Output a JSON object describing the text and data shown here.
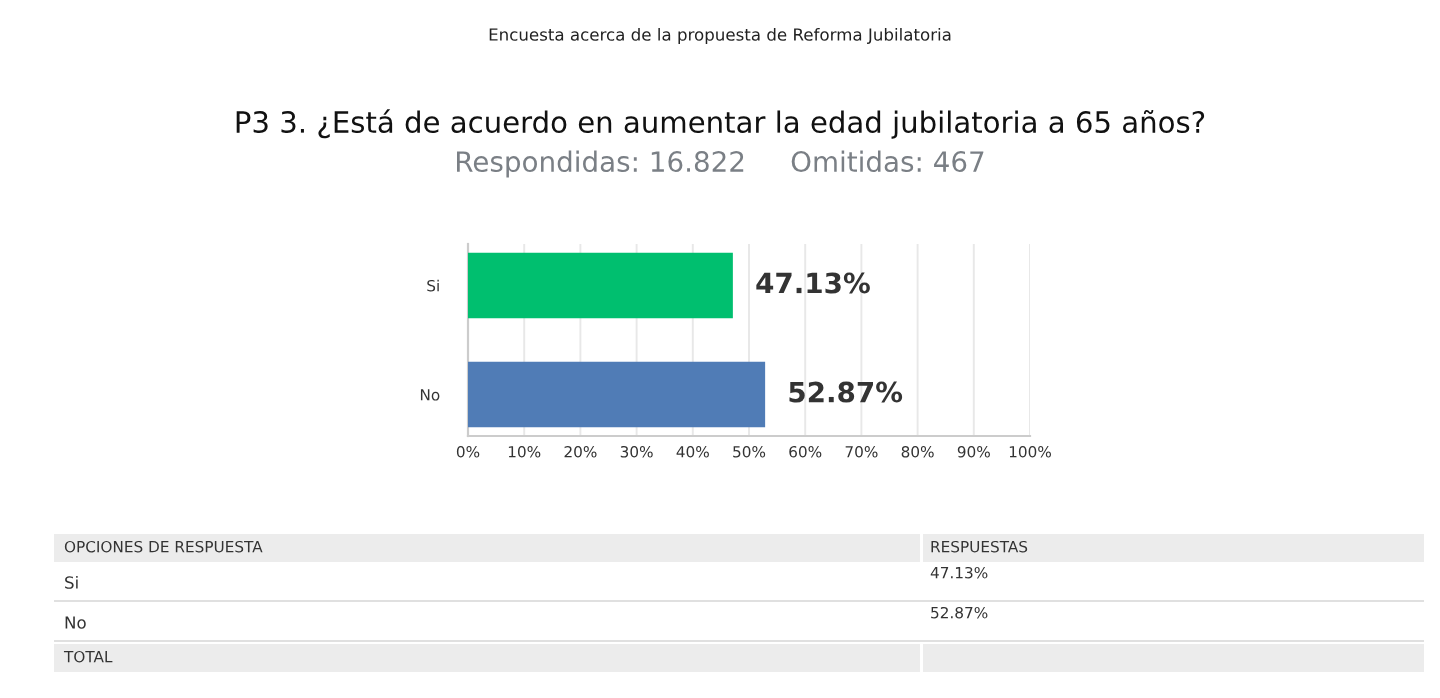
{
  "chart_data": {
    "type": "bar",
    "orientation": "horizontal",
    "title": "P3 3. ¿Está de acuerdo en aumentar la edad jubilatoria a 65 años?",
    "subtitle": "Respondidas: 16.822     Omitidas: 467",
    "categories": [
      "Si",
      "No"
    ],
    "values": [
      47.13,
      52.87
    ],
    "colors": [
      "#00bf6f",
      "#507cb6"
    ],
    "xlim": [
      0,
      100
    ],
    "xticks": [
      {
        "value": 0,
        "label": "0%"
      },
      {
        "value": 10,
        "label": "10%"
      },
      {
        "value": 20,
        "label": "20%"
      },
      {
        "value": 30,
        "label": "30%"
      },
      {
        "value": 40,
        "label": "40%"
      },
      {
        "value": 50,
        "label": "50%"
      },
      {
        "value": 60,
        "label": "60%"
      },
      {
        "value": 70,
        "label": "70%"
      },
      {
        "value": 80,
        "label": "80%"
      },
      {
        "value": 90,
        "label": "90%"
      },
      {
        "value": 100,
        "label": "100%"
      }
    ],
    "grid": "x",
    "value_labels": [
      "47.13%",
      "52.87%"
    ],
    "annotations": [
      "Encuesta acerca de la propuesta de Reforma Jubilatoria",
      "OPCIONES DE RESPUESTA",
      "RESPUESTAS",
      "TOTAL"
    ]
  }
}
